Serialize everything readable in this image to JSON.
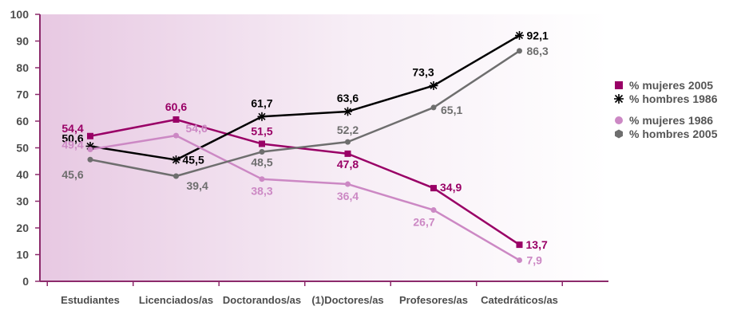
{
  "colors": {
    "mujeres_2005": "#990066",
    "hombres_1986": "#000000",
    "mujeres_1986": "#cc88c4",
    "hombres_2005": "#6e6e6e",
    "axis": "#8c2a6b",
    "text": "#4d4d4d"
  },
  "chart_data": {
    "type": "line",
    "categories": [
      "Estudiantes",
      "Licenciados/as",
      "Doctorandos/as",
      "(1)Doctores/as",
      "Profesores/as",
      "Catedráticos/as"
    ],
    "ylim": [
      0,
      100
    ],
    "yticks": [
      "0",
      "10",
      "20",
      "30",
      "40",
      "50",
      "60",
      "70",
      "80",
      "90",
      "100"
    ],
    "grid": false,
    "legend_position": "right",
    "series": [
      {
        "name": "% mujeres 2005",
        "key": "mujeres_2005",
        "marker": "square",
        "values": [
          54.4,
          60.6,
          51.5,
          47.8,
          34.9,
          13.7
        ],
        "labels": [
          "54,4",
          "60,6",
          "51,5",
          "47,8",
          "34,9",
          "13,7"
        ]
      },
      {
        "name": "% hombres 1986",
        "key": "hombres_1986",
        "marker": "star",
        "values": [
          50.6,
          45.5,
          61.7,
          63.6,
          73.3,
          92.1
        ],
        "labels": [
          "50,6",
          "45,5",
          "61,7",
          "63,6",
          "73,3",
          "92,1"
        ]
      },
      {
        "name": "% mujeres 1986",
        "key": "mujeres_1986",
        "marker": "circle",
        "values": [
          49.4,
          54.6,
          38.3,
          36.4,
          26.7,
          7.9
        ],
        "labels": [
          "49,4",
          "54,6",
          "38,3",
          "36,4",
          "26,7",
          "7,9"
        ]
      },
      {
        "name": "% hombres 2005",
        "key": "hombres_2005",
        "marker": "circle",
        "values": [
          45.6,
          39.4,
          48.5,
          52.2,
          65.1,
          86.3
        ],
        "labels": [
          "45,6",
          "39,4",
          "48,5",
          "52,2",
          "65,1",
          "86,3"
        ]
      }
    ]
  },
  "legend": {
    "items": [
      {
        "label": "% mujeres 2005",
        "icon": "square-icon"
      },
      {
        "label": "% hombres 1986",
        "icon": "star-icon"
      },
      {
        "label": "% mujeres 1986",
        "icon": "circle-icon"
      },
      {
        "label": "% hombres 2005",
        "icon": "hexagon-icon"
      }
    ]
  }
}
